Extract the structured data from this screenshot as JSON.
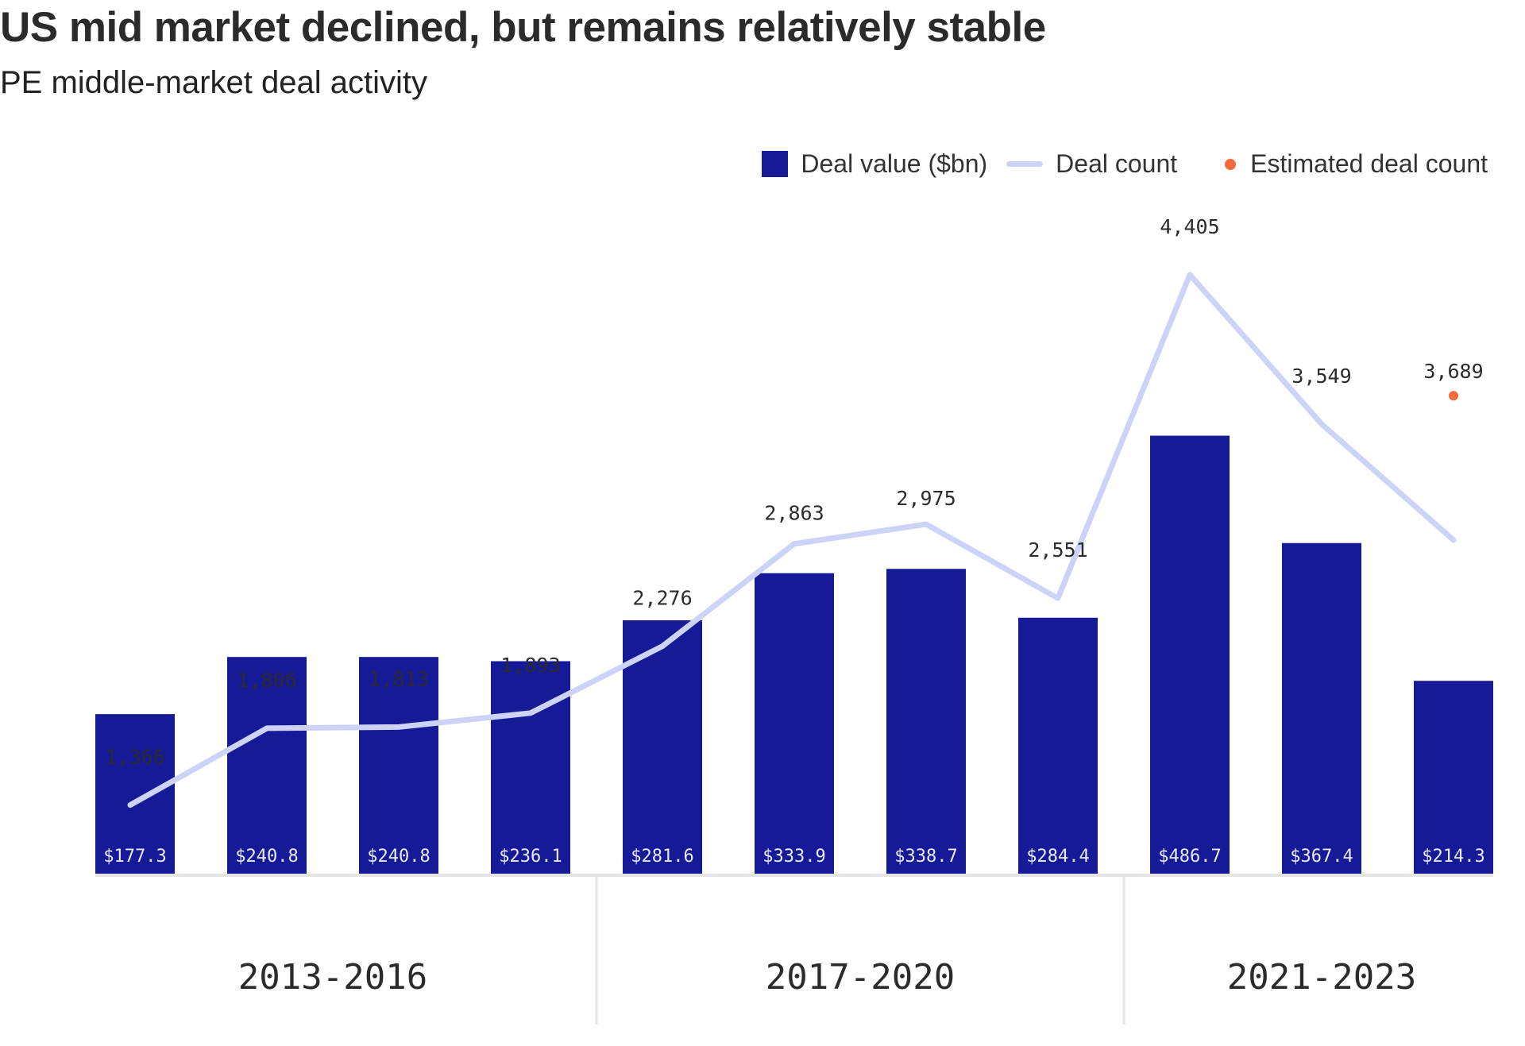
{
  "title": "US mid market declined, but remains relatively stable",
  "subtitle": "PE middle-market deal activity",
  "legend": {
    "bar_label": "Deal value ($bn)",
    "line_label": "Deal count",
    "dot_label": "Estimated deal count"
  },
  "colors": {
    "bar": "#171a96",
    "line": "#ccd3f7",
    "dot": "#f26b3a",
    "axis": "#e4e4e4"
  },
  "chart_data": {
    "type": "bar",
    "title": "US mid market declined, but remains relatively stable",
    "subtitle": "PE middle-market deal activity",
    "xlabel": "",
    "ylabel": "",
    "grid": false,
    "legend_position": "top-right",
    "series": [
      {
        "name": "Deal value ($bn)",
        "type": "bar",
        "values": [
          177.3,
          240.8,
          240.8,
          236.1,
          281.6,
          333.9,
          338.7,
          284.4,
          486.7,
          367.4,
          214.3
        ],
        "labels": [
          "$177.3",
          "$240.8",
          "$240.8",
          "$236.1",
          "$281.6",
          "$333.9",
          "$338.7",
          "$284.4",
          "$486.7",
          "$367.4",
          "$214.3"
        ]
      },
      {
        "name": "Deal count",
        "type": "line",
        "values": [
          1366,
          1806,
          1813,
          1893,
          2276,
          2863,
          2975,
          2551,
          4405,
          3549,
          3689
        ],
        "labels": [
          "1,366",
          "1,806",
          "1,813",
          "1,893",
          "2,276",
          "2,863",
          "2,975",
          "2,551",
          "4,405",
          "3,549",
          "3,689"
        ]
      },
      {
        "name": "Estimated deal count",
        "type": "point",
        "index": 10,
        "value": 3689
      }
    ],
    "groups": [
      {
        "label": "2013-2016",
        "count": 4
      },
      {
        "label": "2017-2020",
        "count": 4
      },
      {
        "label": "2021-2023",
        "count": 3
      }
    ]
  }
}
